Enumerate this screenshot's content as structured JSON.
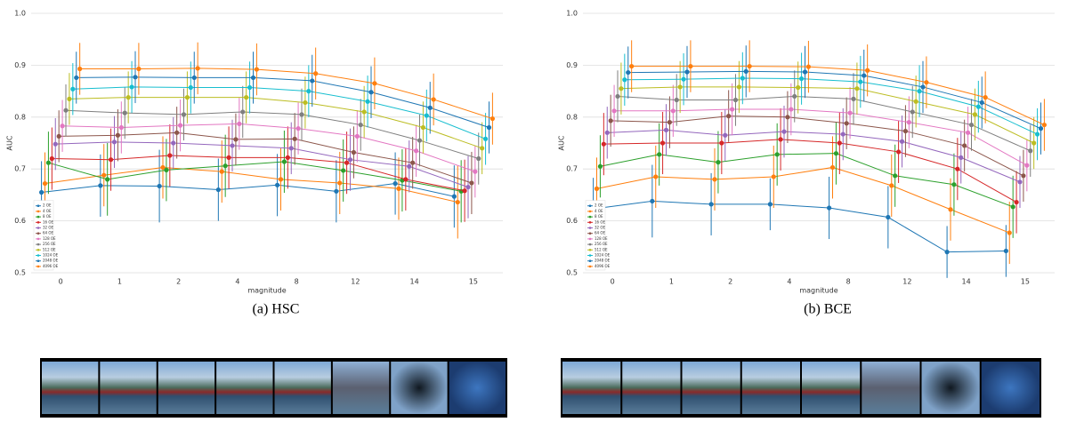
{
  "chart_data": [
    {
      "type": "line",
      "caption": "(a) HSC",
      "xlabel": "magnitude",
      "ylabel": "AUC",
      "categories": [
        "0",
        "1",
        "2",
        "4",
        "8",
        "12",
        "14",
        "15"
      ],
      "ylim": [
        0.5,
        1.0
      ],
      "yticks": [
        0.5,
        0.6,
        0.7,
        0.8,
        0.9,
        {
          "value": 1.0,
          "label": "1.0"
        }
      ],
      "grid": true,
      "legend": "lower left",
      "series": [
        {
          "name": "2 OE",
          "color": "#1f77b4",
          "values": [
            0.655,
            0.668,
            0.667,
            0.66,
            0.669,
            0.657,
            0.672,
            0.647
          ],
          "errors": [
            0.06,
            0.06,
            0.07,
            0.06,
            0.06,
            0.06,
            0.06,
            0.06
          ]
        },
        {
          "name": "4 OE",
          "color": "#ff7f0e",
          "values": [
            0.672,
            0.688,
            0.703,
            0.695,
            0.68,
            0.673,
            0.662,
            0.636
          ],
          "errors": [
            0.06,
            0.06,
            0.06,
            0.06,
            0.06,
            0.06,
            0.06,
            0.07
          ]
        },
        {
          "name": "8 OE",
          "color": "#2ca02c",
          "values": [
            0.712,
            0.68,
            0.698,
            0.706,
            0.714,
            0.697,
            0.678,
            0.657
          ],
          "errors": [
            0.06,
            0.07,
            0.06,
            0.06,
            0.06,
            0.06,
            0.06,
            0.06
          ]
        },
        {
          "name": "16 OE",
          "color": "#d62728",
          "values": [
            0.72,
            0.718,
            0.726,
            0.722,
            0.722,
            0.712,
            0.68,
            0.658
          ],
          "errors": [
            0.06,
            0.06,
            0.06,
            0.06,
            0.06,
            0.06,
            0.06,
            0.06
          ]
        },
        {
          "name": "32 OE",
          "color": "#9467bd",
          "values": [
            0.748,
            0.752,
            0.75,
            0.745,
            0.74,
            0.718,
            0.705,
            0.665
          ],
          "errors": [
            0.05,
            0.05,
            0.05,
            0.05,
            0.05,
            0.06,
            0.05,
            0.06
          ]
        },
        {
          "name": "64 OE",
          "color": "#8c564b",
          "values": [
            0.763,
            0.765,
            0.77,
            0.757,
            0.758,
            0.732,
            0.712,
            0.673
          ],
          "errors": [
            0.05,
            0.05,
            0.05,
            0.05,
            0.05,
            0.05,
            0.05,
            0.06
          ]
        },
        {
          "name": "128 OE",
          "color": "#e377c2",
          "values": [
            0.783,
            0.78,
            0.784,
            0.787,
            0.778,
            0.763,
            0.735,
            0.695
          ],
          "errors": [
            0.05,
            0.05,
            0.05,
            0.05,
            0.05,
            0.05,
            0.05,
            0.05
          ]
        },
        {
          "name": "256 OE",
          "color": "#7f7f7f",
          "values": [
            0.813,
            0.808,
            0.805,
            0.81,
            0.805,
            0.785,
            0.755,
            0.72
          ],
          "errors": [
            0.05,
            0.05,
            0.05,
            0.05,
            0.05,
            0.05,
            0.05,
            0.05
          ]
        },
        {
          "name": "512 OE",
          "color": "#bcbd22",
          "values": [
            0.835,
            0.838,
            0.838,
            0.838,
            0.828,
            0.81,
            0.78,
            0.74
          ],
          "errors": [
            0.05,
            0.05,
            0.05,
            0.05,
            0.05,
            0.05,
            0.05,
            0.05
          ]
        },
        {
          "name": "1024 OE",
          "color": "#17becf",
          "values": [
            0.854,
            0.858,
            0.857,
            0.857,
            0.85,
            0.83,
            0.803,
            0.758
          ],
          "errors": [
            0.05,
            0.05,
            0.05,
            0.05,
            0.05,
            0.05,
            0.05,
            0.05
          ]
        },
        {
          "name": "2048 OE",
          "color": "#1f77b4",
          "values": [
            0.876,
            0.877,
            0.876,
            0.876,
            0.87,
            0.848,
            0.818,
            0.78
          ],
          "errors": [
            0.05,
            0.05,
            0.05,
            0.05,
            0.05,
            0.05,
            0.05,
            0.05
          ]
        },
        {
          "name": "4096 OE",
          "color": "#ff7f0e",
          "values": [
            0.893,
            0.893,
            0.894,
            0.892,
            0.884,
            0.865,
            0.834,
            0.797
          ],
          "errors": [
            0.05,
            0.05,
            0.05,
            0.05,
            0.05,
            0.05,
            0.05,
            0.05
          ]
        }
      ]
    },
    {
      "type": "line",
      "caption": "(b) BCE",
      "xlabel": "magnitude",
      "ylabel": "AUC",
      "categories": [
        "0",
        "1",
        "2",
        "4",
        "8",
        "12",
        "14",
        "15"
      ],
      "ylim": [
        0.5,
        1.0
      ],
      "yticks": [
        0.5,
        0.6,
        0.7,
        0.8,
        0.9,
        {
          "value": 1.0,
          "label": "1.0"
        }
      ],
      "grid": true,
      "legend": "lower left",
      "series": [
        {
          "name": "2 OE",
          "color": "#1f77b4",
          "values": [
            0.623,
            0.638,
            0.632,
            0.632,
            0.625,
            0.607,
            0.54,
            0.542
          ],
          "errors": [
            0.06,
            0.07,
            0.06,
            0.05,
            0.06,
            0.06,
            0.05,
            0.05
          ]
        },
        {
          "name": "4 OE",
          "color": "#ff7f0e",
          "values": [
            0.662,
            0.685,
            0.68,
            0.685,
            0.703,
            0.668,
            0.622,
            0.577
          ],
          "errors": [
            0.06,
            0.06,
            0.06,
            0.06,
            0.06,
            0.06,
            0.06,
            0.06
          ]
        },
        {
          "name": "8 OE",
          "color": "#2ca02c",
          "values": [
            0.705,
            0.728,
            0.713,
            0.728,
            0.73,
            0.687,
            0.67,
            0.627
          ],
          "errors": [
            0.06,
            0.06,
            0.06,
            0.06,
            0.06,
            0.06,
            0.06,
            0.06
          ]
        },
        {
          "name": "16 OE",
          "color": "#d62728",
          "values": [
            0.748,
            0.75,
            0.75,
            0.757,
            0.75,
            0.733,
            0.7,
            0.636
          ],
          "errors": [
            0.06,
            0.06,
            0.06,
            0.06,
            0.06,
            0.06,
            0.06,
            0.06
          ]
        },
        {
          "name": "32 OE",
          "color": "#9467bd",
          "values": [
            0.77,
            0.775,
            0.765,
            0.772,
            0.767,
            0.753,
            0.722,
            0.675
          ],
          "errors": [
            0.05,
            0.05,
            0.05,
            0.05,
            0.05,
            0.05,
            0.05,
            0.05
          ]
        },
        {
          "name": "64 OE",
          "color": "#8c564b",
          "values": [
            0.793,
            0.79,
            0.802,
            0.8,
            0.788,
            0.773,
            0.745,
            0.687
          ],
          "errors": [
            0.05,
            0.05,
            0.05,
            0.05,
            0.05,
            0.05,
            0.05,
            0.05
          ]
        },
        {
          "name": "128 OE",
          "color": "#e377c2",
          "values": [
            0.812,
            0.812,
            0.815,
            0.815,
            0.808,
            0.79,
            0.77,
            0.707
          ],
          "errors": [
            0.05,
            0.05,
            0.05,
            0.05,
            0.05,
            0.05,
            0.05,
            0.05
          ]
        },
        {
          "name": "256 OE",
          "color": "#7f7f7f",
          "values": [
            0.84,
            0.833,
            0.833,
            0.84,
            0.835,
            0.81,
            0.785,
            0.735
          ],
          "errors": [
            0.05,
            0.05,
            0.05,
            0.05,
            0.05,
            0.05,
            0.05,
            0.05
          ]
        },
        {
          "name": "512 OE",
          "color": "#bcbd22",
          "values": [
            0.855,
            0.858,
            0.858,
            0.857,
            0.855,
            0.83,
            0.805,
            0.75
          ],
          "errors": [
            0.05,
            0.05,
            0.05,
            0.05,
            0.05,
            0.05,
            0.05,
            0.05
          ]
        },
        {
          "name": "1024 OE",
          "color": "#17becf",
          "values": [
            0.872,
            0.873,
            0.875,
            0.874,
            0.868,
            0.85,
            0.82,
            0.767
          ],
          "errors": [
            0.05,
            0.05,
            0.05,
            0.05,
            0.05,
            0.05,
            0.05,
            0.05
          ]
        },
        {
          "name": "2048 OE",
          "color": "#1f77b4",
          "values": [
            0.886,
            0.887,
            0.888,
            0.887,
            0.88,
            0.858,
            0.828,
            0.778
          ],
          "errors": [
            0.05,
            0.05,
            0.05,
            0.05,
            0.05,
            0.05,
            0.05,
            0.05
          ]
        },
        {
          "name": "4096 OE",
          "color": "#ff7f0e",
          "values": [
            0.898,
            0.898,
            0.898,
            0.897,
            0.89,
            0.867,
            0.838,
            0.785
          ],
          "errors": [
            0.05,
            0.05,
            0.05,
            0.05,
            0.05,
            0.05,
            0.05,
            0.05
          ]
        }
      ]
    }
  ]
}
